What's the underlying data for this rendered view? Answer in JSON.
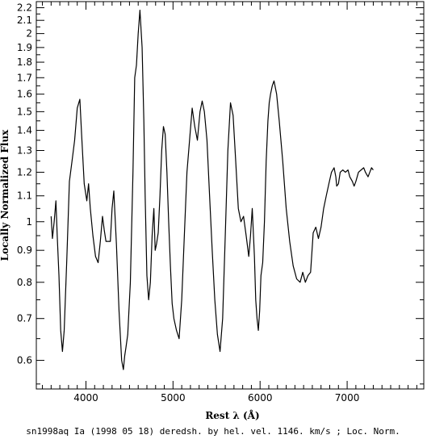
{
  "chart_data": {
    "type": "line",
    "xlabel": "Rest λ (Å)",
    "ylabel": "Locally Normalized Flux",
    "caption": "sn1998aq Ia (1998 05 18) deredsh. by hel. vel. 1146. km/s ; Loc. Norm.",
    "xlim": [
      3430,
      7880
    ],
    "ylim": [
      0.54,
      2.25
    ],
    "y_scale": "log",
    "grid": false,
    "line_color": "#000000",
    "x_ticks": [
      4000,
      5000,
      6000,
      7000
    ],
    "x_tick_labels": [
      "4000",
      "5000",
      "6000",
      "7000"
    ],
    "y_ticks": [
      0.6,
      0.7,
      0.8,
      0.9,
      1,
      1.1,
      1.2,
      1.3,
      1.4,
      1.5,
      1.6,
      1.7,
      1.8,
      1.9,
      2,
      2.1,
      2.2
    ],
    "y_tick_labels": [
      "0.6",
      "0.7",
      "0.8",
      "0.9",
      "1",
      "1.1",
      "1.2",
      "1.3",
      "1.4",
      "1.5",
      "1.6",
      "1.7",
      "1.8",
      "1.9",
      "2",
      "2.1",
      "2.2"
    ],
    "series": [
      {
        "x": [
          3600,
          3615,
          3635,
          3655,
          3670,
          3690,
          3710,
          3730,
          3750,
          3780,
          3810,
          3840,
          3870,
          3900,
          3930,
          3950,
          3980,
          4010,
          4030,
          4050,
          4080,
          4110,
          4140,
          4165,
          4190,
          4210,
          4230,
          4250,
          4280,
          4300,
          4320,
          4350,
          4380,
          4410,
          4430,
          4445,
          4460,
          4480,
          4510,
          4540,
          4560,
          4580,
          4600,
          4620,
          4645,
          4665,
          4680,
          4700,
          4720,
          4740,
          4760,
          4780,
          4795,
          4810,
          4830,
          4850,
          4870,
          4890,
          4910,
          4930,
          4950,
          4970,
          4990,
          5010,
          5040,
          5070,
          5100,
          5130,
          5160,
          5190,
          5220,
          5250,
          5280,
          5310,
          5335,
          5360,
          5390,
          5420,
          5450,
          5480,
          5510,
          5540,
          5570,
          5600,
          5630,
          5660,
          5690,
          5720,
          5750,
          5780,
          5810,
          5840,
          5870,
          5890,
          5910,
          5935,
          5950,
          5965,
          5980,
          5995,
          6010,
          6030,
          6050,
          6070,
          6090,
          6105,
          6120,
          6140,
          6160,
          6190,
          6220,
          6260,
          6300,
          6340,
          6380,
          6420,
          6460,
          6490,
          6520,
          6550,
          6580,
          6610,
          6640,
          6670,
          6700,
          6730,
          6760,
          6790,
          6820,
          6850,
          6870,
          6880,
          6900,
          6920,
          6950,
          6980,
          7010,
          7030,
          7060,
          7080,
          7100,
          7130,
          7160,
          7190,
          7210,
          7240,
          7260,
          7280,
          7300
        ],
        "y": [
          1.02,
          0.94,
          1.0,
          1.08,
          0.95,
          0.82,
          0.67,
          0.62,
          0.67,
          0.87,
          1.16,
          1.25,
          1.35,
          1.52,
          1.57,
          1.38,
          1.15,
          1.08,
          1.15,
          1.05,
          0.95,
          0.88,
          0.86,
          0.93,
          1.02,
          0.97,
          0.93,
          0.93,
          0.93,
          1.05,
          1.12,
          0.92,
          0.72,
          0.6,
          0.58,
          0.61,
          0.63,
          0.66,
          0.8,
          1.2,
          1.7,
          1.78,
          2.0,
          2.18,
          1.9,
          1.45,
          1.1,
          0.82,
          0.75,
          0.8,
          0.95,
          1.05,
          0.9,
          0.92,
          0.96,
          1.1,
          1.3,
          1.42,
          1.38,
          1.2,
          1.0,
          0.85,
          0.74,
          0.7,
          0.67,
          0.65,
          0.75,
          0.95,
          1.2,
          1.35,
          1.52,
          1.42,
          1.35,
          1.5,
          1.56,
          1.5,
          1.35,
          1.1,
          0.9,
          0.75,
          0.66,
          0.62,
          0.7,
          0.95,
          1.3,
          1.55,
          1.48,
          1.25,
          1.05,
          1.0,
          1.02,
          0.95,
          0.88,
          0.95,
          1.05,
          0.88,
          0.75,
          0.7,
          0.67,
          0.72,
          0.82,
          0.86,
          1.0,
          1.25,
          1.45,
          1.55,
          1.6,
          1.65,
          1.68,
          1.6,
          1.45,
          1.25,
          1.05,
          0.93,
          0.85,
          0.81,
          0.8,
          0.83,
          0.8,
          0.82,
          0.83,
          0.96,
          0.98,
          0.94,
          0.98,
          1.05,
          1.1,
          1.15,
          1.2,
          1.22,
          1.18,
          1.14,
          1.15,
          1.2,
          1.21,
          1.2,
          1.21,
          1.18,
          1.16,
          1.14,
          1.16,
          1.2,
          1.21,
          1.22,
          1.2,
          1.18,
          1.2,
          1.22,
          1.21
        ]
      }
    ]
  }
}
